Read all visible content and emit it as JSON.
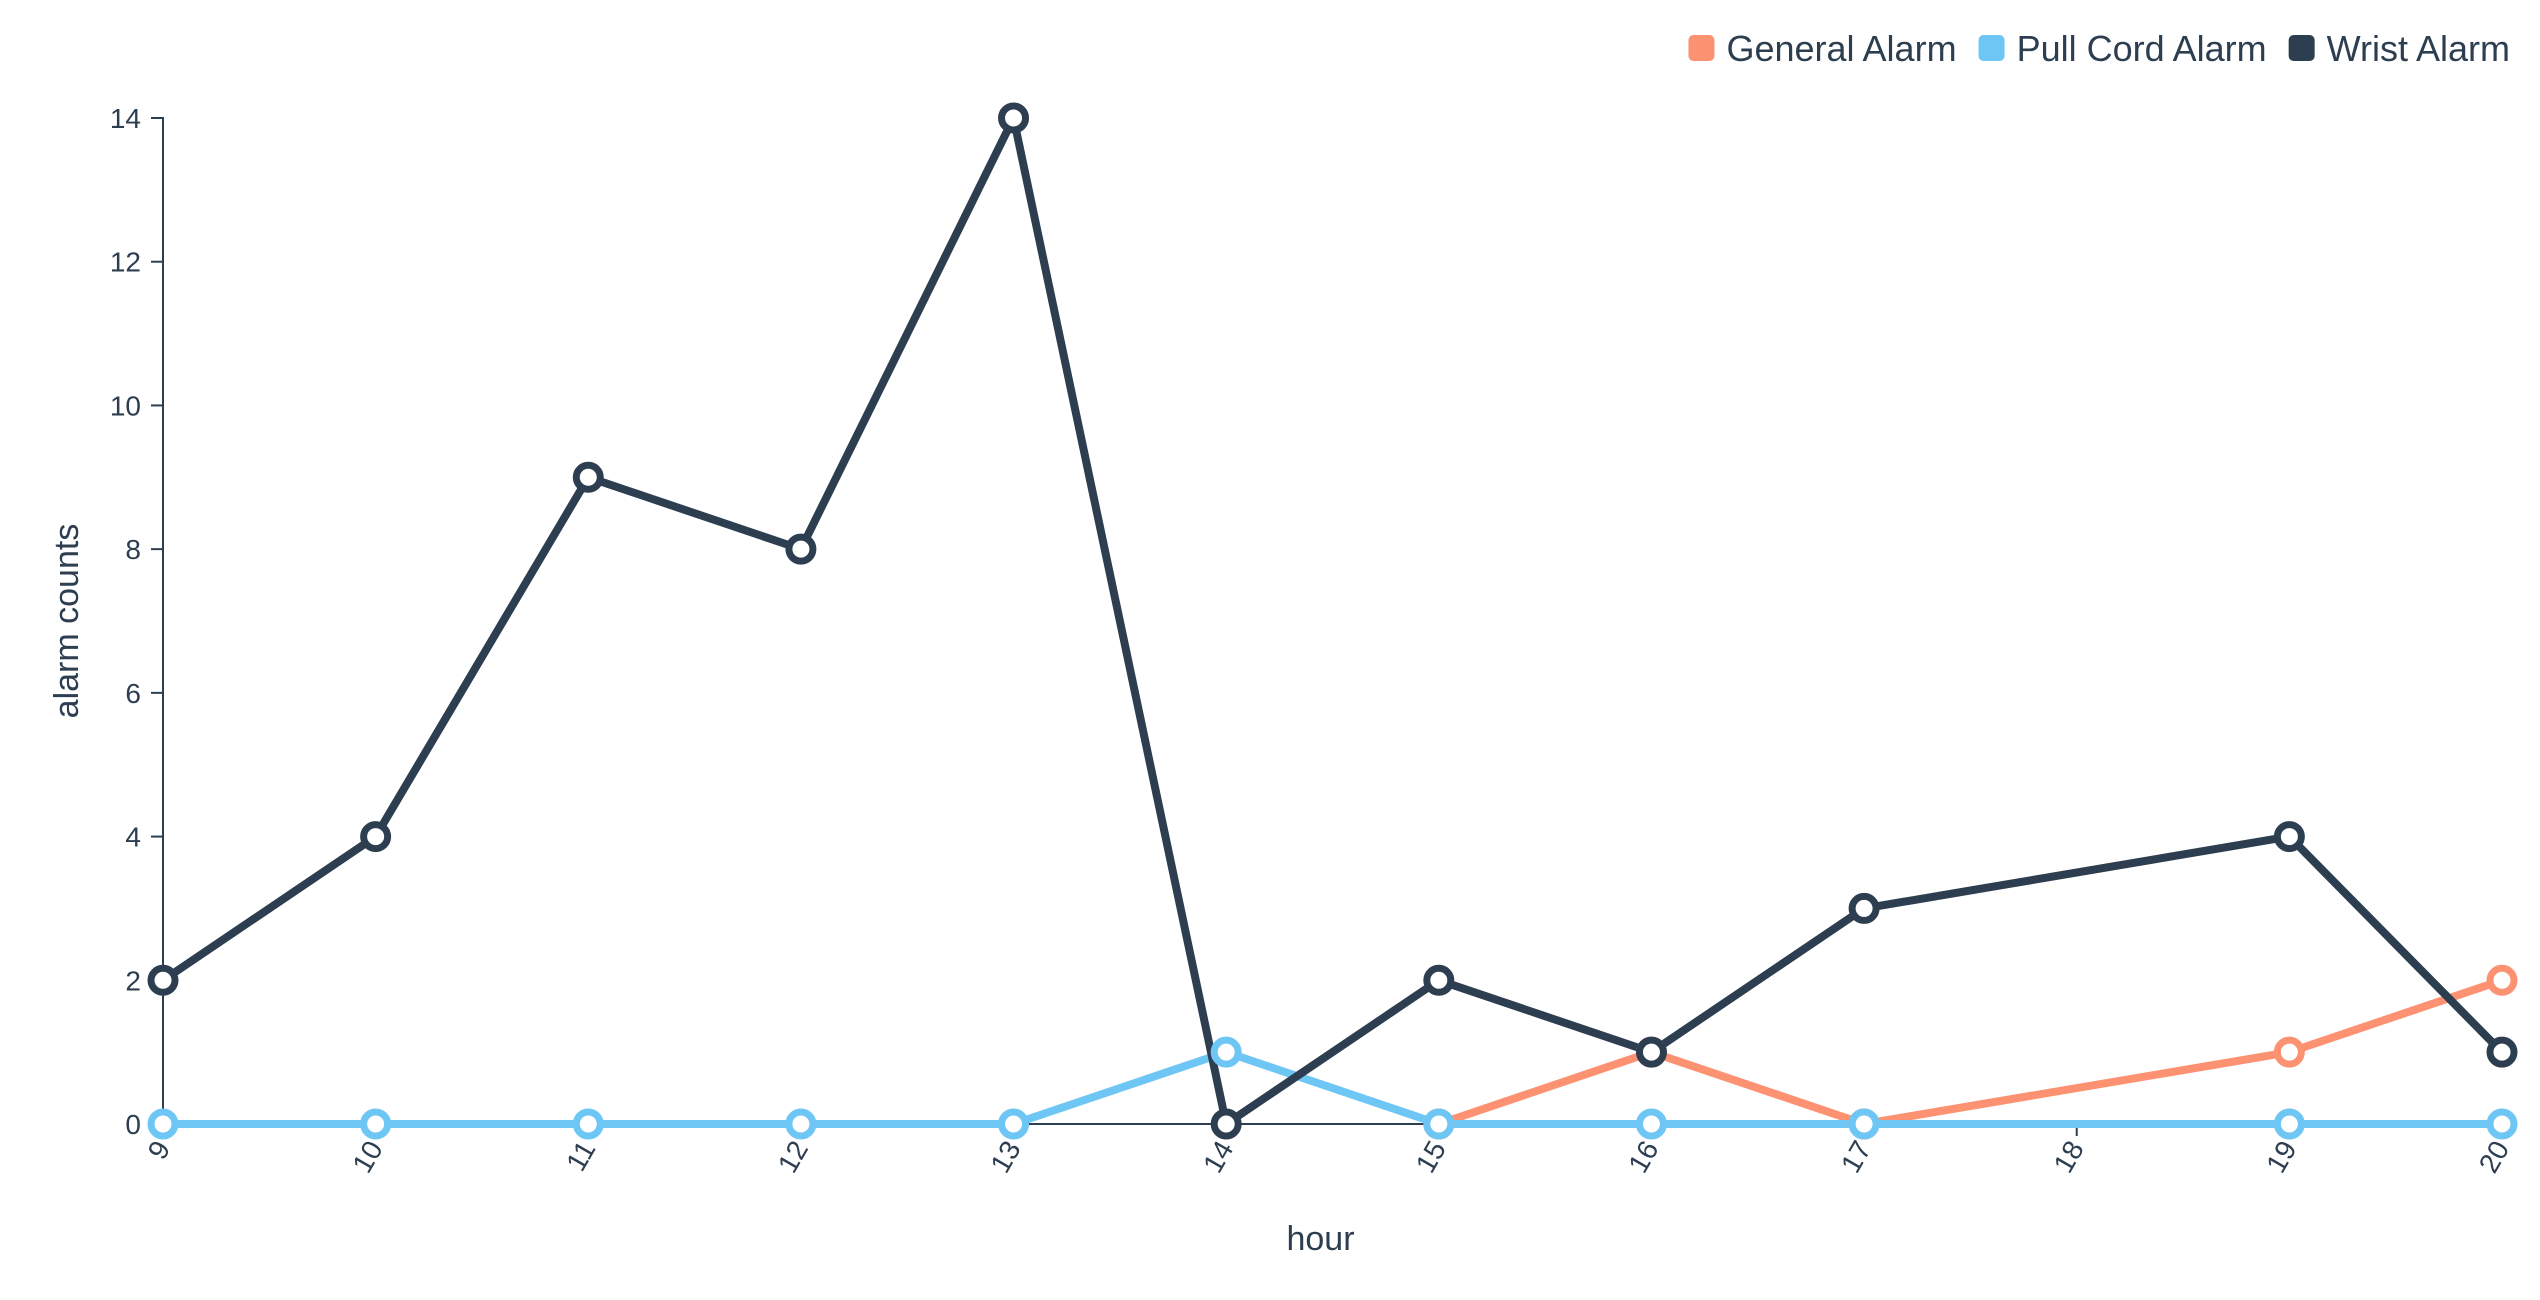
{
  "chart_data": {
    "type": "line",
    "title": "",
    "xlabel": "hour",
    "ylabel": "alarm counts",
    "x": [
      9,
      10,
      11,
      12,
      13,
      14,
      15,
      16,
      17,
      18,
      19,
      20
    ],
    "xlim": [
      9,
      20
    ],
    "ylim": [
      0,
      14
    ],
    "yticks": [
      0,
      2,
      4,
      6,
      8,
      10,
      12,
      14
    ],
    "grid": false,
    "legend_position": "top-right",
    "series": [
      {
        "name": "General Alarm",
        "color": "#fc9272",
        "points": [
          [
            15,
            0
          ],
          [
            16,
            1
          ],
          [
            17,
            0
          ],
          [
            19,
            1
          ],
          [
            20,
            2
          ]
        ]
      },
      {
        "name": "Pull Cord Alarm",
        "color": "#6ec6f5",
        "points": [
          [
            9,
            0
          ],
          [
            10,
            0
          ],
          [
            11,
            0
          ],
          [
            12,
            0
          ],
          [
            13,
            0
          ],
          [
            14,
            1
          ],
          [
            15,
            0
          ],
          [
            16,
            0
          ],
          [
            17,
            0
          ],
          [
            19,
            0
          ],
          [
            20,
            0
          ]
        ]
      },
      {
        "name": "Wrist Alarm",
        "color": "#2c3e50",
        "points": [
          [
            9,
            2
          ],
          [
            10,
            4
          ],
          [
            11,
            9
          ],
          [
            12,
            8
          ],
          [
            13,
            14
          ],
          [
            14,
            0
          ],
          [
            15,
            2
          ],
          [
            16,
            1
          ],
          [
            17,
            3
          ],
          [
            19,
            4
          ],
          [
            20,
            1
          ]
        ]
      }
    ]
  }
}
